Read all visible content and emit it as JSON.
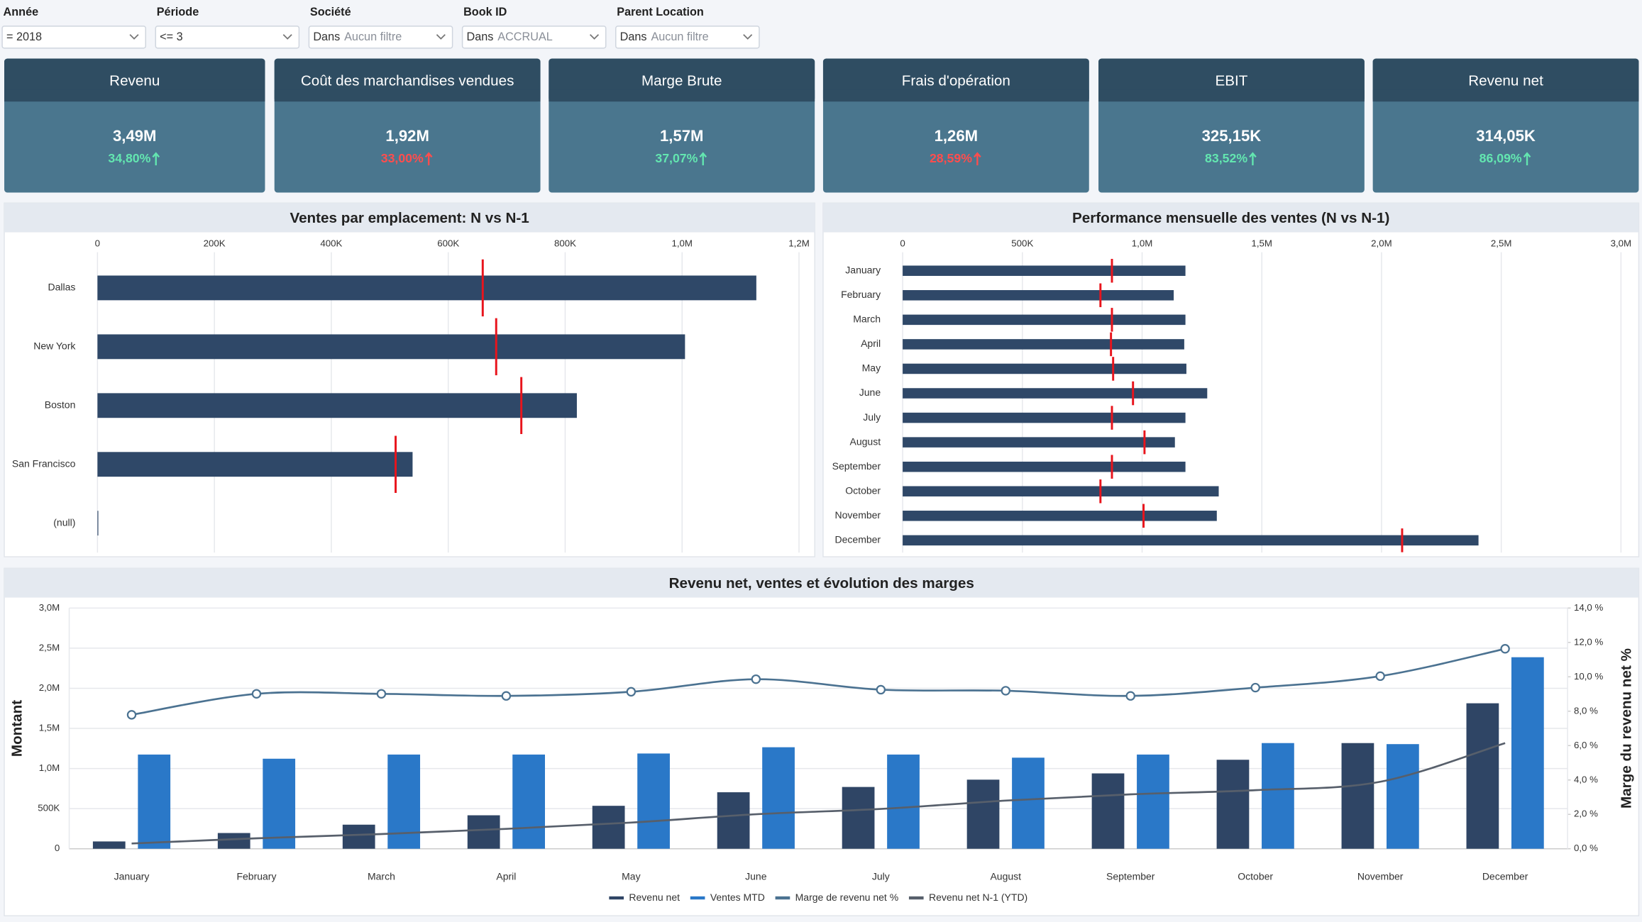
{
  "filters": [
    {
      "label": "Année",
      "value": "= 2018"
    },
    {
      "label": "Période",
      "value": "<= 3"
    },
    {
      "label": "Société",
      "operator": "Dans",
      "value": "Aucun filtre"
    },
    {
      "label": "Book ID",
      "operator": "Dans",
      "value": "ACCRUAL"
    },
    {
      "label": "Parent Location",
      "operator": "Dans",
      "value": "Aucun filtre"
    }
  ],
  "kpis": [
    {
      "title": "Revenu",
      "value": "3,49M",
      "change": "34,80%",
      "change_color": "#63e6b0"
    },
    {
      "title": "Coût des marchandises vendues",
      "value": "1,92M",
      "change": "33,00%",
      "change_color": "#ff4d4d"
    },
    {
      "title": "Marge Brute",
      "value": "1,57M",
      "change": "37,07%",
      "change_color": "#63e6b0"
    },
    {
      "title": "Frais d'opération",
      "value": "1,26M",
      "change": "28,59%",
      "change_color": "#ff4d4d"
    },
    {
      "title": "EBIT",
      "value": "325,15K",
      "change": "83,52%",
      "change_color": "#63e6b0"
    },
    {
      "title": "Revenu net",
      "value": "314,05K",
      "change": "86,09%",
      "change_color": "#63e6b0"
    }
  ],
  "chart_data": [
    {
      "type": "bar",
      "orientation": "horizontal",
      "title": "Ventes par emplacement: N vs N-1",
      "categories": [
        "Dallas",
        "New York",
        "Boston",
        "San Francisco",
        "(null)"
      ],
      "series": [
        {
          "color": "#2f4868",
          "values": [
            1127000,
            1005000,
            820000,
            539000,
            0
          ]
        },
        {
          "color": "#e8141c",
          "marker": "tick",
          "values": [
            659000,
            682000,
            725000,
            510000,
            null
          ]
        }
      ],
      "xlim": [
        0,
        1200000
      ],
      "xticks": [
        0,
        {
          "value": 200000,
          "label": "200K"
        },
        {
          "value": 400000,
          "label": "400K"
        },
        {
          "value": 600000,
          "label": "600K"
        },
        {
          "value": 800000,
          "label": "800K"
        },
        {
          "value": 1000000,
          "label": "1,0M"
        },
        {
          "value": 1200000,
          "label": "1,2M"
        }
      ],
      "grid": true
    },
    {
      "type": "bar",
      "orientation": "horizontal",
      "title": "Performance mensuelle des ventes (N vs N-1)",
      "categories": [
        "January",
        "February",
        "March",
        "April",
        "May",
        "June",
        "July",
        "August",
        "September",
        "October",
        "November",
        "December"
      ],
      "series": [
        {
          "color": "#2f4868",
          "values": [
            1181000,
            1132000,
            1181000,
            1176000,
            1185000,
            1272000,
            1181000,
            1137000,
            1181000,
            1320000,
            1312000,
            2405000
          ]
        },
        {
          "color": "#e8141c",
          "marker": "tick",
          "values": [
            874000,
            826000,
            874000,
            870000,
            879000,
            962000,
            874000,
            1010000,
            874000,
            826000,
            1006000,
            2086000
          ]
        }
      ],
      "xlim": [
        0,
        3000000
      ],
      "xticks": [
        0,
        {
          "value": 500000,
          "label": "500K"
        },
        {
          "value": 1000000,
          "label": "1,0M"
        },
        {
          "value": 1500000,
          "label": "1,5M"
        },
        {
          "value": 2000000,
          "label": "2,0M"
        },
        {
          "value": 2500000,
          "label": "2,5M"
        },
        {
          "value": 3000000,
          "label": "3,0M"
        }
      ],
      "grid": true
    },
    {
      "type": "combo",
      "title": "Revenu net, ventes et évolution des marges",
      "categories": [
        "January",
        "February",
        "March",
        "April",
        "May",
        "June",
        "July",
        "August",
        "September",
        "October",
        "November",
        "December"
      ],
      "series": [
        {
          "name": "Revenu net",
          "type": "bar",
          "color": "#2f4565",
          "values": [
            91000,
            196000,
            300000,
            417000,
            535000,
            704000,
            770000,
            861000,
            939000,
            1109000,
            1317000,
            1813000
          ]
        },
        {
          "name": "Ventes MTD",
          "type": "bar",
          "color": "#2a78c8",
          "values": [
            1174000,
            1122000,
            1174000,
            1174000,
            1187000,
            1265000,
            1174000,
            1135000,
            1174000,
            1317000,
            1304000,
            2387000
          ]
        },
        {
          "name": "Marge de revenu net %",
          "type": "line",
          "axis": "y2",
          "marker": "circle",
          "color": "#4b7291",
          "values": [
            7.79,
            9.01,
            9.01,
            8.89,
            9.13,
            9.86,
            9.25,
            9.19,
            8.89,
            9.37,
            10.04,
            11.63
          ]
        },
        {
          "name": "Revenu net N-1 (YTD)",
          "type": "line",
          "color": "#575f6b",
          "values": [
            65000,
            130000,
            183000,
            248000,
            326000,
            430000,
            496000,
            600000,
            678000,
            730000,
            835000,
            1317000
          ]
        }
      ],
      "ylabel": "Montant",
      "y2label": "Marge du revenu net %",
      "ylim": [
        0,
        3000000
      ],
      "yticks": [
        0,
        {
          "value": 500000,
          "label": "500K"
        },
        {
          "value": 1000000,
          "label": "1,0M"
        },
        {
          "value": 1500000,
          "label": "1,5M"
        },
        {
          "value": 2000000,
          "label": "2,0M"
        },
        {
          "value": 2500000,
          "label": "2,5M"
        },
        {
          "value": 3000000,
          "label": "3,0M"
        }
      ],
      "y2lim": [
        0,
        14
      ],
      "y2ticks": [
        {
          "value": 0,
          "label": "0,0 %"
        },
        {
          "value": 2,
          "label": "2,0 %"
        },
        {
          "value": 4,
          "label": "4,0 %"
        },
        {
          "value": 6,
          "label": "6,0 %"
        },
        {
          "value": 8,
          "label": "8,0 %"
        },
        {
          "value": 10,
          "label": "10,0 %"
        },
        {
          "value": 12,
          "label": "12,0 %"
        },
        {
          "value": 14,
          "label": "14,0 %"
        }
      ],
      "grid": true,
      "legend": "bottom"
    }
  ]
}
